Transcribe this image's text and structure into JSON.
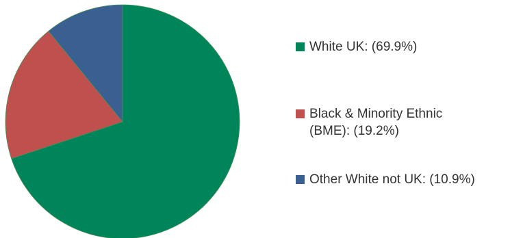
{
  "chart_data": {
    "type": "pie",
    "title": "",
    "slices": [
      {
        "label": "White UK: (69.9%)",
        "value": 69.9,
        "color": "#00845a"
      },
      {
        "label": "Black & Minority Ethnic\n(BME): (19.2%)",
        "value": 19.2,
        "color": "#c0504d"
      },
      {
        "label": "Other White not UK: (10.9%)",
        "value": 10.9,
        "color": "#3a5f91"
      }
    ],
    "legend_position": "right"
  }
}
